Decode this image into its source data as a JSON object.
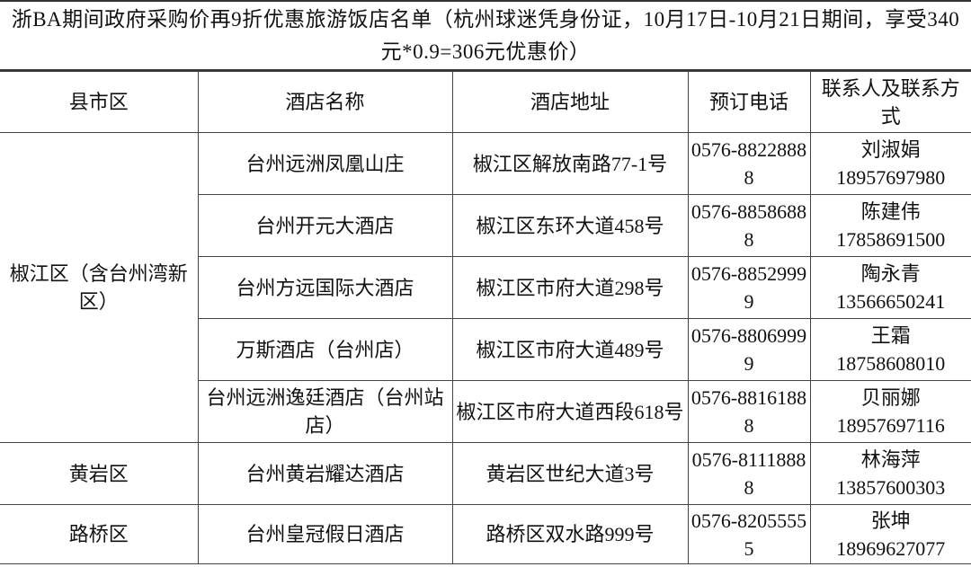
{
  "title": "浙BA期间政府采购价再9折优惠旅游饭店名单（杭州球迷凭身份证，10月17日-10月21日期间，享受340元*0.9=306元优惠价）",
  "headers": [
    "县市区",
    "酒店名称",
    "酒店地址",
    "预订电话",
    "联系人及联系方式"
  ],
  "groups": [
    {
      "district": "椒江区（含台州湾新区）",
      "rows": [
        {
          "name": "台州远洲凤凰山庄",
          "address": "椒江区解放南路77-1号",
          "phone": "0576-88228888",
          "contact": "刘淑娟",
          "mobile": "18957697980"
        },
        {
          "name": "台州开元大酒店",
          "address": "椒江区东环大道458号",
          "phone": "0576-88586888",
          "contact": "陈建伟",
          "mobile": "17858691500"
        },
        {
          "name": "台州方远国际大酒店",
          "address": "椒江区市府大道298号",
          "phone": "0576-88529999",
          "contact": "陶永青",
          "mobile": "13566650241"
        },
        {
          "name": "万斯酒店（台州店）",
          "address": "椒江区市府大道489号",
          "phone": "0576-88069999",
          "contact": "王霜",
          "mobile": "18758608010"
        },
        {
          "name": "台州远洲逸廷酒店（台州站店）",
          "address": "椒江区市府大道西段618号",
          "phone": "0576-88161888",
          "contact": "贝丽娜",
          "mobile": "18957697116"
        }
      ]
    },
    {
      "district": "黄岩区",
      "rows": [
        {
          "name": "台州黄岩耀达酒店",
          "address": "黄岩区世纪大道3号",
          "phone": "0576-81118888",
          "contact": "林海萍",
          "mobile": "13857600303"
        }
      ]
    },
    {
      "district": "路桥区",
      "rows": [
        {
          "name": "台州皇冠假日酒店",
          "address": "路桥区双水路999号",
          "phone": "0576-82055555",
          "contact": "张坤",
          "mobile": "18969627077"
        }
      ]
    }
  ]
}
